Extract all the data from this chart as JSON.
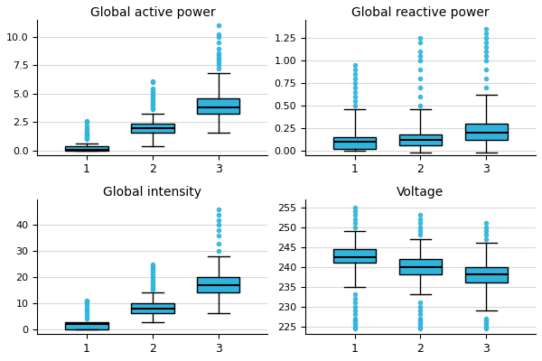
{
  "titles": [
    "Global active power",
    "Global reactive power",
    "Global intensity",
    "Voltage"
  ],
  "box_color": "#30b4de",
  "median_color": "#000000",
  "whisker_color": "#000000",
  "flier_color": "#30b4de",
  "plots": [
    {
      "positions": [
        1,
        2,
        3
      ],
      "boxes": [
        {
          "q1": 0.0,
          "median": 0.08,
          "q3": 0.4,
          "whislo": 0.0,
          "whishi": 0.6,
          "fliers_above": [
            1.0,
            1.1,
            1.2,
            1.3,
            1.4,
            1.5,
            1.6,
            1.8,
            2.0,
            2.2,
            2.5,
            2.6
          ],
          "fliers_below": []
        },
        {
          "q1": 1.6,
          "median": 2.0,
          "q3": 2.4,
          "whislo": 0.4,
          "whishi": 3.2,
          "fliers_above": [
            3.6,
            3.8,
            4.0,
            4.2,
            4.4,
            4.6,
            4.8,
            5.0,
            5.2,
            5.5,
            6.0,
            6.1
          ],
          "fliers_below": []
        },
        {
          "q1": 3.2,
          "median": 3.8,
          "q3": 4.6,
          "whislo": 1.6,
          "whishi": 6.8,
          "fliers_above": [
            7.2,
            7.5,
            7.8,
            8.0,
            8.2,
            8.4,
            8.6,
            9.0,
            9.5,
            10.0,
            10.2,
            11.0
          ],
          "fliers_below": []
        }
      ],
      "ylim": [
        -0.4,
        11.5
      ],
      "yticks": [
        0.0,
        2.5,
        5.0,
        7.5,
        10.0
      ]
    },
    {
      "positions": [
        1,
        2,
        3
      ],
      "boxes": [
        {
          "q1": 0.02,
          "median": 0.1,
          "q3": 0.15,
          "whislo": 0.0,
          "whishi": 0.46,
          "fliers_above": [
            0.5,
            0.55,
            0.6,
            0.65,
            0.7,
            0.75,
            0.8,
            0.85,
            0.9,
            0.95
          ],
          "fliers_below": []
        },
        {
          "q1": 0.06,
          "median": 0.12,
          "q3": 0.18,
          "whislo": -0.02,
          "whishi": 0.46,
          "fliers_above": [
            0.5,
            0.6,
            0.7,
            0.8,
            0.9,
            1.0,
            1.05,
            1.1,
            1.2,
            1.25
          ],
          "fliers_below": []
        },
        {
          "q1": 0.12,
          "median": 0.2,
          "q3": 0.3,
          "whislo": -0.02,
          "whishi": 0.62,
          "fliers_above": [
            0.7,
            0.8,
            0.9,
            1.0,
            1.05,
            1.1,
            1.15,
            1.2,
            1.25,
            1.3,
            1.35
          ],
          "fliers_below": []
        }
      ],
      "ylim": [
        -0.05,
        1.45
      ],
      "yticks": [
        0.0,
        0.25,
        0.5,
        0.75,
        1.0,
        1.25
      ]
    },
    {
      "positions": [
        1,
        2,
        3
      ],
      "boxes": [
        {
          "q1": 0.0,
          "median": 2.0,
          "q3": 2.5,
          "whislo": 0.0,
          "whishi": 2.4,
          "fliers_above": [
            4.0,
            5.0,
            6.0,
            7.0,
            8.0,
            9.0,
            10.0,
            10.5,
            11.0
          ],
          "fliers_below": []
        },
        {
          "q1": 6.0,
          "median": 8.0,
          "q3": 10.0,
          "whislo": 2.5,
          "whishi": 14.0,
          "fliers_above": [
            15.0,
            16.0,
            17.0,
            18.0,
            19.0,
            20.0,
            21.0,
            22.0,
            23.0,
            24.0,
            25.0
          ],
          "fliers_below": []
        },
        {
          "q1": 14.0,
          "median": 17.0,
          "q3": 20.0,
          "whislo": 6.0,
          "whishi": 28.0,
          "fliers_above": [
            30.0,
            33.0,
            36.0,
            38.0,
            40.0,
            42.0,
            44.0,
            46.0
          ],
          "fliers_below": []
        }
      ],
      "ylim": [
        -2,
        50
      ],
      "yticks": [
        0,
        10,
        20,
        30,
        40
      ]
    },
    {
      "positions": [
        1,
        2,
        3
      ],
      "boxes": [
        {
          "q1": 241.0,
          "median": 242.5,
          "q3": 244.5,
          "whislo": 235.0,
          "whishi": 249.0,
          "fliers_above": [
            250.0,
            251.0,
            252.0,
            253.0,
            254.0,
            255.0
          ],
          "fliers_below": [
            233.0,
            232.0,
            231.0,
            230.0,
            229.0,
            228.0,
            227.0,
            226.5,
            226.0,
            225.5,
            225.0,
            224.5
          ]
        },
        {
          "q1": 238.0,
          "median": 240.0,
          "q3": 242.0,
          "whislo": 233.0,
          "whishi": 247.0,
          "fliers_above": [
            248.0,
            249.0,
            250.0,
            251.0,
            252.0,
            253.0
          ],
          "fliers_below": [
            231.0,
            230.0,
            229.0,
            228.0,
            227.0,
            226.5,
            226.0,
            225.5,
            225.0,
            224.5
          ]
        },
        {
          "q1": 236.0,
          "median": 238.0,
          "q3": 240.0,
          "whislo": 229.0,
          "whishi": 246.0,
          "fliers_above": [
            247.0,
            248.0,
            249.0,
            250.0,
            251.0
          ],
          "fliers_below": [
            227.0,
            226.5,
            226.0,
            225.5,
            225.0,
            224.5
          ]
        }
      ],
      "ylim": [
        223,
        257
      ],
      "yticks": [
        225,
        230,
        235,
        240,
        245,
        250,
        255
      ]
    }
  ]
}
